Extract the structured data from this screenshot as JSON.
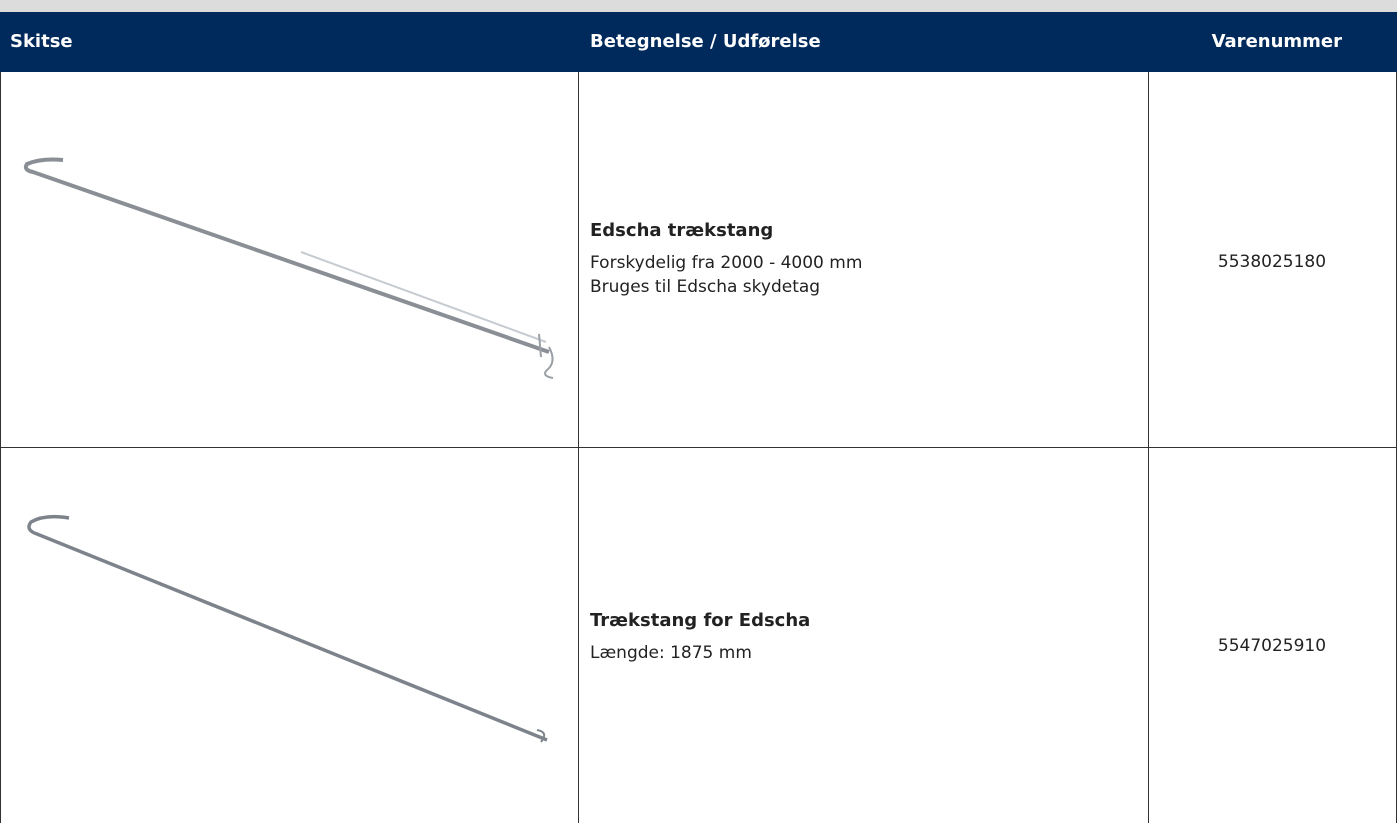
{
  "table": {
    "header": [
      "Skitse",
      "Betegnelse / Udførelse",
      "Varenummer"
    ],
    "rows": [
      {
        "title": "Edscha trækstang",
        "lines": [
          "Forskydelig fra 2000 - 4000 mm",
          "Bruges til Edscha skydetag"
        ],
        "number": "5538025180"
      },
      {
        "title": "Trækstang for Edscha",
        "lines": [
          "Længde: 1875 mm"
        ],
        "number": "5547025910"
      }
    ]
  }
}
